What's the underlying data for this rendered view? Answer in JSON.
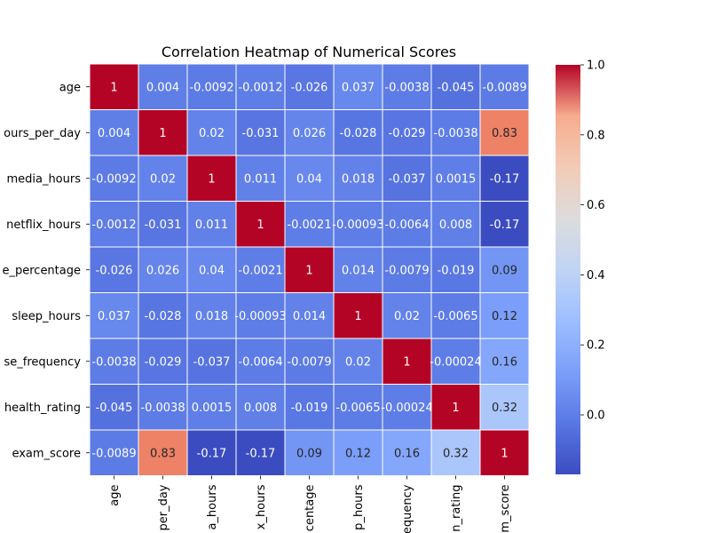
{
  "chart_data": {
    "type": "heatmap",
    "title": "Correlation Heatmap of Numerical Scores",
    "row_labels": [
      "age",
      "ours_per_day",
      "media_hours",
      "netflix_hours",
      "e_percentage",
      "sleep_hours",
      "se_frequency",
      "health_rating",
      "exam_score"
    ],
    "col_labels": [
      "age",
      "per_day",
      "a_hours",
      "x_hours",
      "centage",
      "p_hours",
      "equency",
      "n_rating",
      "m_score"
    ],
    "cell_labels": [
      [
        "1",
        "0.004",
        "-0.0092",
        "-0.0012",
        "-0.026",
        "0.037",
        "-0.0038",
        "-0.045",
        "-0.0089"
      ],
      [
        "0.004",
        "1",
        "0.02",
        "-0.031",
        "0.026",
        "-0.028",
        "-0.029",
        "-0.0038",
        "0.83"
      ],
      [
        "-0.0092",
        "0.02",
        "1",
        "0.011",
        "0.04",
        "0.018",
        "-0.037",
        "0.0015",
        "-0.17"
      ],
      [
        "-0.0012",
        "-0.031",
        "0.011",
        "1",
        "-0.0021",
        "-0.00093",
        "-0.0064",
        "0.008",
        "-0.17"
      ],
      [
        "-0.026",
        "0.026",
        "0.04",
        "-0.0021",
        "1",
        "0.014",
        "-0.0079",
        "-0.019",
        "0.09"
      ],
      [
        "0.037",
        "-0.028",
        "0.018",
        "-0.00093",
        "0.014",
        "1",
        "0.02",
        "-0.0065",
        "0.12"
      ],
      [
        "-0.0038",
        "-0.029",
        "-0.037",
        "-0.0064",
        "-0.0079",
        "0.02",
        "1",
        "-0.00024",
        "0.16"
      ],
      [
        "-0.045",
        "-0.0038",
        "0.0015",
        "0.008",
        "-0.019",
        "-0.0065",
        "-0.00024",
        "1",
        "0.32"
      ],
      [
        "-0.0089",
        "0.83",
        "-0.17",
        "-0.17",
        "0.09",
        "0.12",
        "0.16",
        "0.32",
        "1"
      ]
    ],
    "color_scale": "coolwarm",
    "vmin": -0.17,
    "vmax": 1.0,
    "colorbar_ticks": [
      0.0,
      0.2,
      0.4,
      0.6,
      0.8,
      1.0
    ],
    "colorbar_tick_labels": [
      "0.0",
      "0.2",
      "0.4",
      "0.6",
      "0.8",
      "1.0"
    ],
    "grid_lines_color": "#ffffff",
    "legend_placement": "right"
  }
}
